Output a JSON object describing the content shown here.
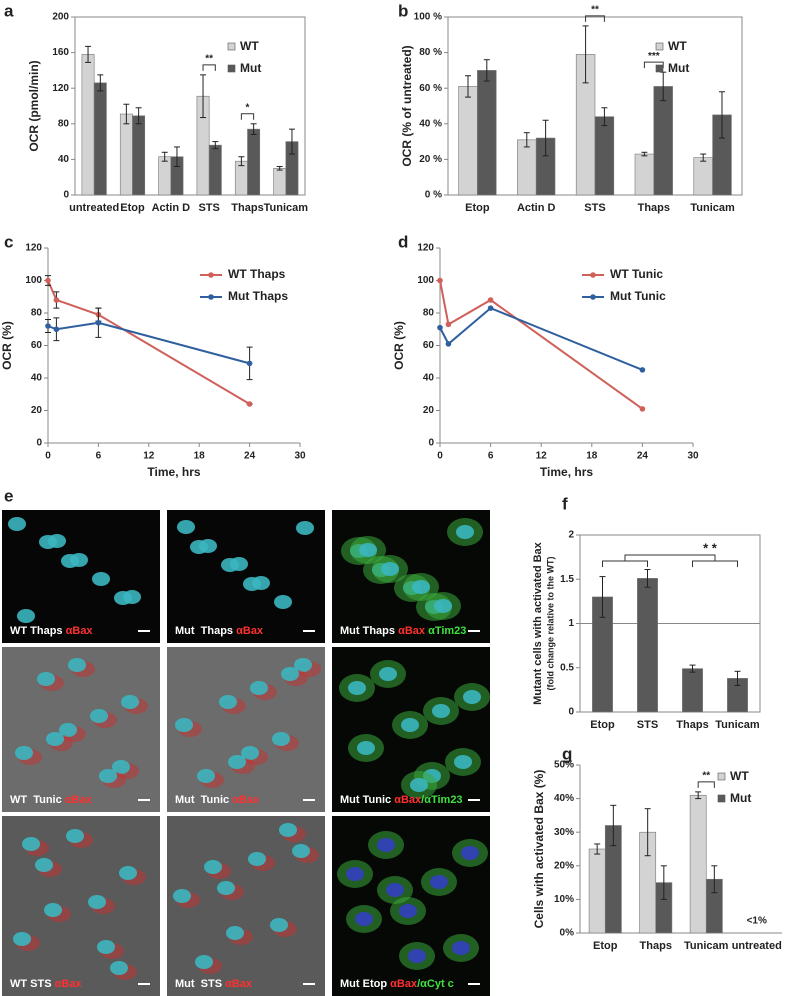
{
  "chart_data": [
    {
      "panel": "a",
      "type": "bar",
      "ylabel": "OCR (pmol/min)",
      "categories": [
        "untreated",
        "Etop",
        "Actin D",
        "STS",
        "Thaps",
        "Tunicam"
      ],
      "series": [
        {
          "name": "WT",
          "color": "#d3d3d3",
          "values": [
            158,
            91,
            43,
            111,
            38,
            30
          ],
          "errors": [
            9,
            11,
            5,
            24,
            5,
            2
          ]
        },
        {
          "name": "Mut",
          "color": "#595959",
          "values": [
            126,
            89,
            43,
            56,
            74,
            60
          ],
          "errors": [
            9,
            9,
            11,
            4,
            6,
            14
          ]
        }
      ],
      "ylim": [
        0,
        200
      ],
      "yticks": [
        0,
        40,
        80,
        120,
        160,
        200
      ],
      "legend": "upper right",
      "annotations": [
        {
          "text": "**",
          "category": "STS"
        },
        {
          "text": "*",
          "category": "Thaps"
        }
      ]
    },
    {
      "panel": "b",
      "type": "bar",
      "ylabel": "OCR (% of untreated)",
      "categories": [
        "Etop",
        "Actin D",
        "STS",
        "Thaps",
        "Tunicam"
      ],
      "series": [
        {
          "name": "WT",
          "color": "#d3d3d3",
          "values": [
            61,
            31,
            79,
            23,
            21
          ],
          "errors": [
            6,
            4,
            16,
            1,
            2
          ]
        },
        {
          "name": "Mut",
          "color": "#595959",
          "values": [
            70,
            32,
            44,
            61,
            45
          ],
          "errors": [
            6,
            10,
            5,
            8,
            13
          ]
        }
      ],
      "ylim": [
        0,
        100
      ],
      "yticks": [
        {
          "value": 0,
          "label": "0 %"
        },
        {
          "value": 20,
          "label": "20 %"
        },
        {
          "value": 40,
          "label": "40 %"
        },
        {
          "value": 60,
          "label": "60 %"
        },
        {
          "value": 80,
          "label": "80 %"
        },
        {
          "value": 100,
          "label": "100 %"
        }
      ],
      "legend": "upper right",
      "annotations": [
        {
          "text": "**",
          "category": "STS"
        },
        {
          "text": "***",
          "category": "Thaps"
        }
      ]
    },
    {
      "panel": "c",
      "type": "line",
      "xlabel": "Time, hrs",
      "ylabel": "OCR (%)",
      "x": [
        0,
        1,
        6,
        24
      ],
      "series": [
        {
          "name": "WT Thaps",
          "color": "#d0605a",
          "values": [
            100,
            88,
            79,
            24
          ],
          "errors": [
            3,
            5,
            4,
            0
          ]
        },
        {
          "name": "Mut Thaps",
          "color": "#2f5f9e",
          "values": [
            72,
            70,
            74,
            49
          ],
          "errors": [
            4,
            7,
            9,
            10
          ]
        }
      ],
      "xlim": [
        0,
        30
      ],
      "xticks": [
        0,
        6,
        12,
        18,
        24,
        30
      ],
      "ylim": [
        0,
        120
      ],
      "yticks": [
        0,
        20,
        40,
        60,
        80,
        100,
        120
      ],
      "legend": "upper right"
    },
    {
      "panel": "d",
      "type": "line",
      "xlabel": "Time, hrs",
      "ylabel": "OCR (%)",
      "x": [
        0,
        1,
        6,
        24
      ],
      "series": [
        {
          "name": "WT Tunic",
          "color": "#d0605a",
          "values": [
            100,
            73,
            88,
            21
          ]
        },
        {
          "name": "Mut Tunic",
          "color": "#2f5f9e",
          "values": [
            71,
            61,
            83,
            45
          ]
        }
      ],
      "xlim": [
        0,
        30
      ],
      "xticks": [
        0,
        6,
        12,
        18,
        24,
        30
      ],
      "ylim": [
        0,
        120
      ],
      "yticks": [
        0,
        20,
        40,
        60,
        80,
        100,
        120
      ],
      "legend": "upper right"
    },
    {
      "panel": "f",
      "type": "bar",
      "ylabel": [
        "Mutant cells with activated Bax",
        "(fold change relative to the WT)"
      ],
      "categories": [
        "Etop",
        "STS",
        "Thaps",
        "Tunicam"
      ],
      "series": [
        {
          "name": "Mut",
          "color": "#595959",
          "values": [
            1.3,
            1.51,
            0.49,
            0.38
          ],
          "errors": [
            0.23,
            0.1,
            0.04,
            0.08
          ]
        }
      ],
      "ylim": [
        0,
        2
      ],
      "yticks": [
        0,
        0.5,
        1,
        1.5,
        2
      ],
      "reference_line": 1,
      "annotations": [
        {
          "text": "* *"
        }
      ]
    },
    {
      "panel": "g",
      "type": "bar",
      "ylabel": "Cells with activated Bax (%)",
      "categories": [
        "Etop",
        "Thaps",
        "Tunicam",
        "untreated"
      ],
      "series": [
        {
          "name": "WT",
          "color": "#d3d3d3",
          "values": [
            25,
            30,
            41,
            null
          ],
          "errors": [
            1.5,
            7,
            1,
            null
          ]
        },
        {
          "name": "Mut",
          "color": "#595959",
          "values": [
            32,
            15,
            16,
            null
          ],
          "errors": [
            6,
            5,
            4,
            null
          ]
        }
      ],
      "ylim": [
        0,
        50
      ],
      "yticks": [
        {
          "value": 0,
          "label": "0%"
        },
        {
          "value": 10,
          "label": "10%"
        },
        {
          "value": 20,
          "label": "20%"
        },
        {
          "value": 30,
          "label": "30%"
        },
        {
          "value": 40,
          "label": "40%"
        },
        {
          "value": 50,
          "label": "50%"
        }
      ],
      "legend": "upper right",
      "annotations": [
        {
          "text": "**",
          "category": "Tunicam"
        },
        {
          "text": "<1%",
          "category": "untreated"
        }
      ]
    }
  ],
  "figure_e": {
    "panel": "e",
    "images": [
      {
        "label": [
          {
            "text": "WT Thaps ",
            "color": "#ffffff"
          },
          {
            "text": "αBax",
            "color": "#ff3030"
          }
        ]
      },
      {
        "label": [
          {
            "text": "Mut  Thaps ",
            "color": "#ffffff"
          },
          {
            "text": "αBax",
            "color": "#ff3030"
          }
        ]
      },
      {
        "label": [
          {
            "text": "Mut Thaps ",
            "color": "#ffffff"
          },
          {
            "text": "αBax ",
            "color": "#ff3030"
          },
          {
            "text": "αTim23",
            "color": "#40e040"
          }
        ]
      },
      {
        "label": [
          {
            "text": "WT  Tunic ",
            "color": "#ffffff"
          },
          {
            "text": "αBax",
            "color": "#ff3030"
          }
        ]
      },
      {
        "label": [
          {
            "text": "Mut  Tunic ",
            "color": "#ffffff"
          },
          {
            "text": "αBax",
            "color": "#ff3030"
          }
        ]
      },
      {
        "label": [
          {
            "text": "Mut Tunic ",
            "color": "#ffffff"
          },
          {
            "text": "αBax",
            "color": "#ff3030"
          },
          {
            "text": "/αTim23",
            "color": "#40e040"
          }
        ]
      },
      {
        "label": [
          {
            "text": "WT STS ",
            "color": "#ffffff"
          },
          {
            "text": "αBax",
            "color": "#ff3030"
          }
        ]
      },
      {
        "label": [
          {
            "text": "Mut  STS ",
            "color": "#ffffff"
          },
          {
            "text": "αBax",
            "color": "#ff3030"
          }
        ]
      },
      {
        "label": [
          {
            "text": "Mut Etop ",
            "color": "#ffffff"
          },
          {
            "text": "αBax",
            "color": "#ff3030"
          },
          {
            "text": "/αCyt c",
            "color": "#40e040"
          }
        ]
      }
    ]
  }
}
